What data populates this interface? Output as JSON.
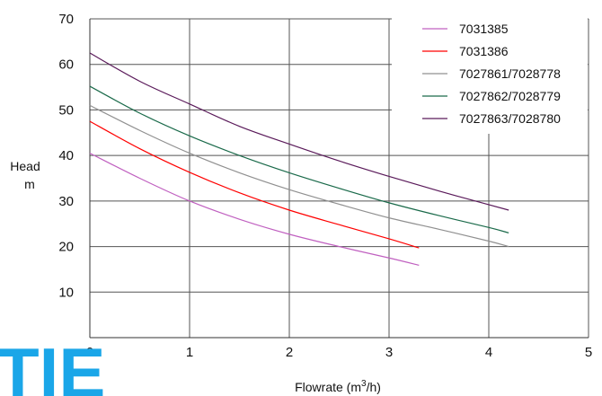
{
  "chart_data": {
    "type": "line",
    "title": "",
    "xlabel": "Flowrate (m",
    "xlabel_sup": "3",
    "xlabel_tail": "/h)",
    "ylabel_lines": [
      "Head",
      "m"
    ],
    "xlim": [
      0,
      5
    ],
    "ylim": [
      0,
      70
    ],
    "x_ticks": [
      "0",
      "1",
      "2",
      "3",
      "4",
      "5"
    ],
    "y_ticks": [
      "10",
      "20",
      "30",
      "40",
      "50",
      "60",
      "70"
    ],
    "grid": true,
    "legend_position": "top-right",
    "series": [
      {
        "name": "7031385",
        "color": "#c060c0",
        "x": [
          0,
          0.5,
          1,
          1.5,
          2,
          2.5,
          3,
          3.3
        ],
        "y": [
          40.5,
          35,
          30,
          26,
          22.7,
          20,
          17.5,
          15.9
        ]
      },
      {
        "name": "7031386",
        "color": "#ff0000",
        "x": [
          0,
          0.5,
          1,
          1.5,
          2,
          2.5,
          3,
          3.3
        ],
        "y": [
          47.5,
          41.5,
          36.3,
          31.8,
          28,
          24.8,
          21.7,
          19.7
        ]
      },
      {
        "name": "7027861/7028778",
        "color": "#909090",
        "x": [
          0,
          0.5,
          1,
          1.5,
          2,
          2.5,
          3,
          3.5,
          4,
          4.2
        ],
        "y": [
          51,
          45.5,
          40.5,
          36.2,
          32.5,
          29.3,
          26.3,
          23.8,
          21.2,
          20
        ]
      },
      {
        "name": "7027862/7028779",
        "color": "#1a6a4a",
        "x": [
          0,
          0.5,
          1,
          1.5,
          2,
          2.5,
          3,
          3.5,
          4,
          4.2
        ],
        "y": [
          55.2,
          49.3,
          44.3,
          40,
          36.2,
          32.8,
          29.6,
          26.8,
          24.2,
          23
        ]
      },
      {
        "name": "7027863/7028780",
        "color": "#5a1a5a",
        "x": [
          0,
          0.5,
          1,
          1.5,
          2,
          2.5,
          3,
          3.5,
          4,
          4.2
        ],
        "y": [
          62.5,
          56.3,
          51.3,
          46.4,
          42.5,
          38.8,
          35.4,
          32.2,
          29.2,
          28
        ]
      }
    ]
  },
  "logo": {
    "text": "TIE",
    "color": "#1aa6e8"
  }
}
